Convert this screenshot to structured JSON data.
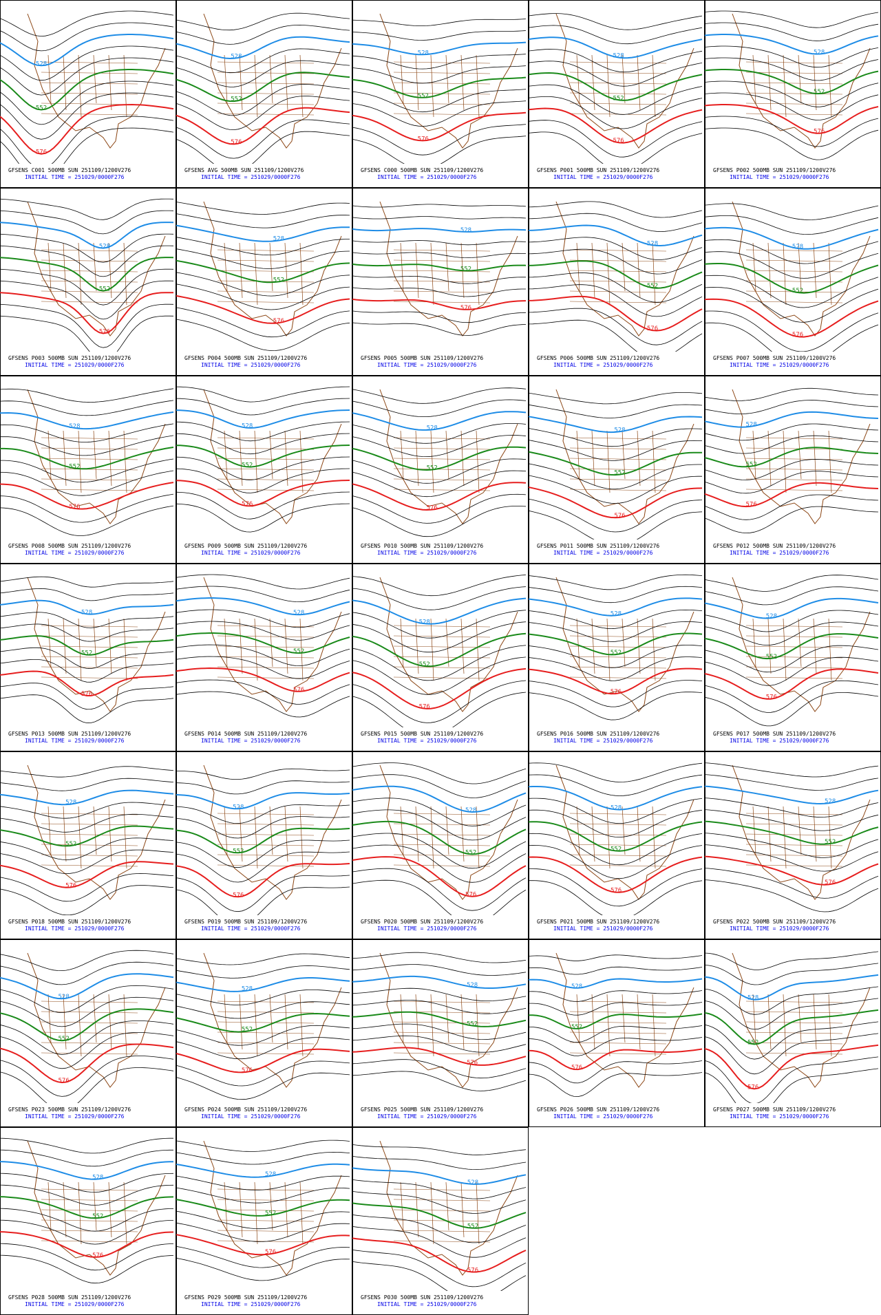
{
  "panels": [
    {
      "title": "GFSENS C001 500MB SUN 251109/1200V276",
      "subtitle": "INITIAL TIME = 251029/0000F276"
    },
    {
      "title": "GFSENS AVG 500MB SUN 251109/1200V276",
      "subtitle": "INITIAL TIME = 251029/0000F276"
    },
    {
      "title": "GFSENS C000 500MB SUN 251109/1200V276",
      "subtitle": "INITIAL TIME = 251029/0000F276"
    },
    {
      "title": "GFSENS P001 500MB SUN 251109/1200V276",
      "subtitle": "INITIAL TIME = 251029/0000F276"
    },
    {
      "title": "GFSENS P002 500MB SUN 251109/1200V276",
      "subtitle": "INITIAL TIME = 251029/0000F276"
    },
    {
      "title": "GFSENS P003 500MB SUN 251109/1200V276",
      "subtitle": "INITIAL TIME = 251029/0000F276"
    },
    {
      "title": "GFSENS P004 500MB SUN 251109/1200V276",
      "subtitle": "INITIAL TIME = 251029/0000F276"
    },
    {
      "title": "GFSENS P005 500MB SUN 251109/1200V276",
      "subtitle": "INITIAL TIME = 251029/0000F276"
    },
    {
      "title": "GFSENS P006 500MB SUN 251109/1200V276",
      "subtitle": "INITIAL TIME = 251029/0000F276"
    },
    {
      "title": "GFSENS P007 500MB SUN 251109/1200V276",
      "subtitle": "INITIAL TIME = 251029/0000F276"
    },
    {
      "title": "GFSENS P008 500MB SUN 251109/1200V276",
      "subtitle": "INITIAL TIME = 251029/0000F276"
    },
    {
      "title": "GFSENS P009 500MB SUN 251109/1200V276",
      "subtitle": "INITIAL TIME = 251029/0000F276"
    },
    {
      "title": "GFSENS P010 500MB SUN 251109/1200V276",
      "subtitle": "INITIAL TIME = 251029/0000F276"
    },
    {
      "title": "GFSENS P011 500MB SUN 251109/1200V276",
      "subtitle": "INITIAL TIME = 251029/0000F276"
    },
    {
      "title": "GFSENS P012 500MB SUN 251109/1200V276",
      "subtitle": "INITIAL TIME = 251029/0000F276"
    },
    {
      "title": "GFSENS P013 500MB SUN 251109/1200V276",
      "subtitle": "INITIAL TIME = 251029/0000F276"
    },
    {
      "title": "GFSENS P014 500MB SUN 251109/1200V276",
      "subtitle": "INITIAL TIME = 251029/0000F276"
    },
    {
      "title": "GFSENS P015 500MB SUN 251109/1200V276",
      "subtitle": "INITIAL TIME = 251029/0000F276"
    },
    {
      "title": "GFSENS P016 500MB SUN 251109/1200V276",
      "subtitle": "INITIAL TIME = 251029/0000F276"
    },
    {
      "title": "GFSENS P017 500MB SUN 251109/1200V276",
      "subtitle": "INITIAL TIME = 251029/0000F276"
    },
    {
      "title": "GFSENS P018 500MB SUN 251109/1200V276",
      "subtitle": "INITIAL TIME = 251029/0000F276"
    },
    {
      "title": "GFSENS P019 500MB SUN 251109/1200V276",
      "subtitle": "INITIAL TIME = 251029/0000F276"
    },
    {
      "title": "GFSENS P020 500MB SUN 251109/1200V276",
      "subtitle": "INITIAL TIME = 251029/0000F276"
    },
    {
      "title": "GFSENS P021 500MB SUN 251109/1200V276",
      "subtitle": "INITIAL TIME = 251029/0000F276"
    },
    {
      "title": "GFSENS P022 500MB SUN 251109/1200V276",
      "subtitle": "INITIAL TIME = 251029/0000F276"
    },
    {
      "title": "GFSENS P023 500MB SUN 251109/1200V276",
      "subtitle": "INITIAL TIME = 251029/0000F276"
    },
    {
      "title": "GFSENS P024 500MB SUN 251109/1200V276",
      "subtitle": "INITIAL TIME = 251029/0000F276"
    },
    {
      "title": "GFSENS P025 500MB SUN 251109/1200V276",
      "subtitle": "INITIAL TIME = 251029/0000F276"
    },
    {
      "title": "GFSENS P026 500MB SUN 251109/1200V276",
      "subtitle": "INITIAL TIME = 251029/0000F276"
    },
    {
      "title": "GFSENS P027 500MB SUN 251109/1200V276",
      "subtitle": "INITIAL TIME = 251029/0000F276"
    },
    {
      "title": "GFSENS P028 500MB SUN 251109/1200V276",
      "subtitle": "INITIAL TIME = 251029/0000F276"
    },
    {
      "title": "GFSENS P029 500MB SUN 251109/1200V276",
      "subtitle": "INITIAL TIME = 251029/0000F276"
    },
    {
      "title": "GFSENS P030 500MB SUN 251109/1200V276",
      "subtitle": "INITIAL TIME = 251029/0000F276"
    }
  ],
  "contours": [
    {
      "label": "528",
      "color": "#1e8ce6"
    },
    {
      "label": "552",
      "color": "#1a8a1a"
    },
    {
      "label": "576",
      "color": "#e61e1e"
    }
  ]
}
